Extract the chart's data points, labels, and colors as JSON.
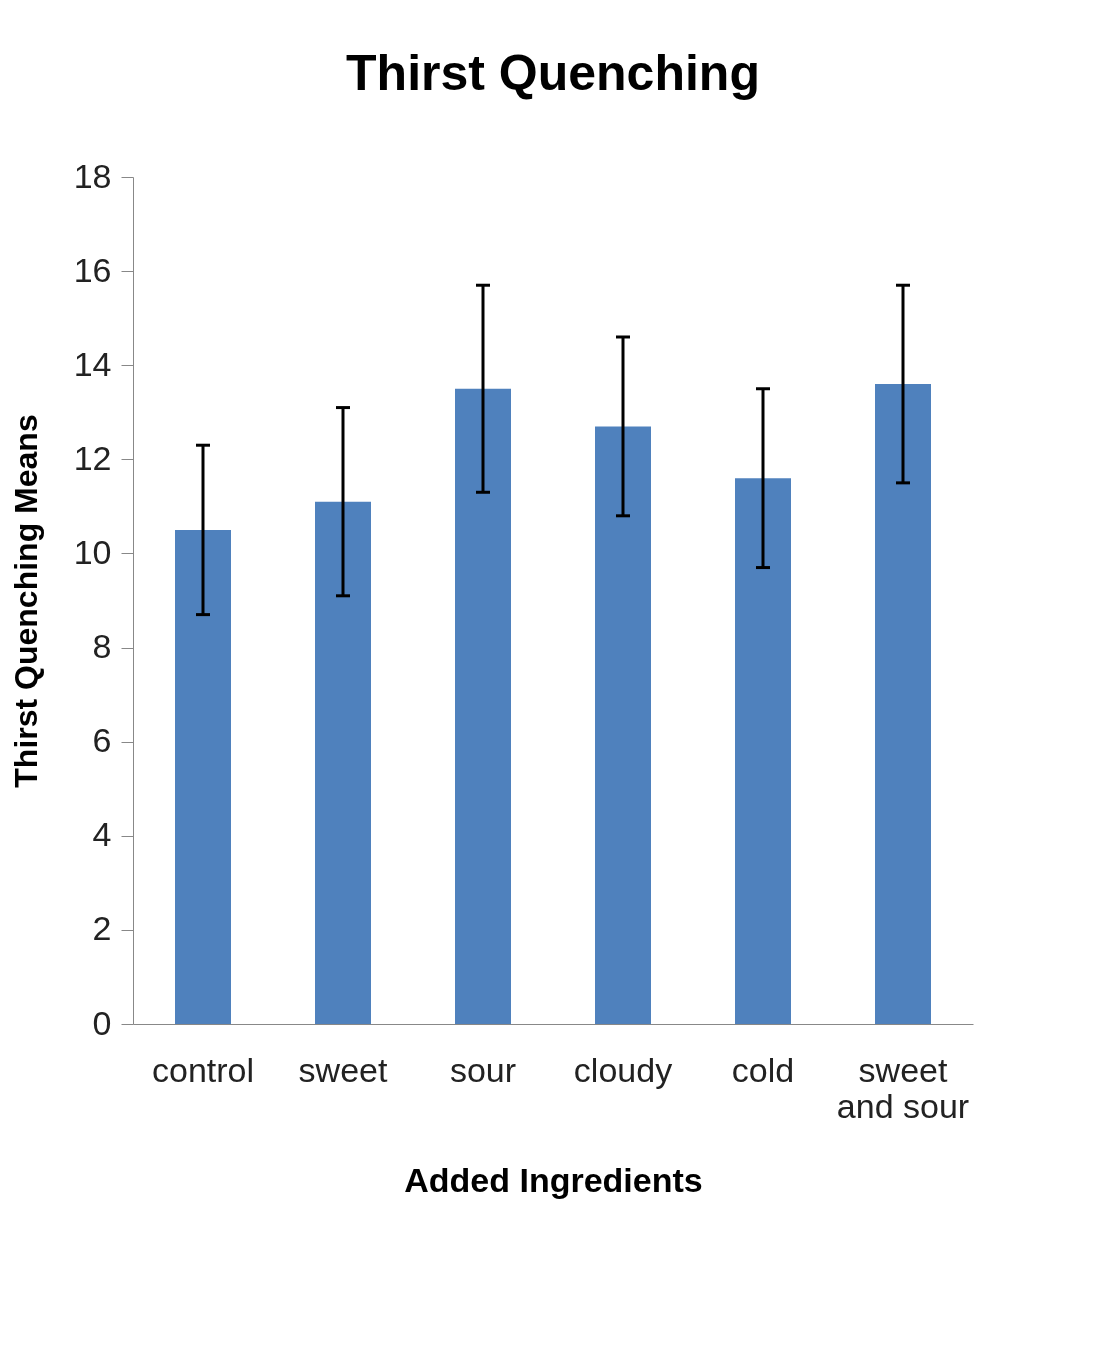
{
  "chart_data": {
    "type": "bar",
    "title": "Thirst Quenching",
    "xlabel": "Added Ingredients",
    "ylabel": "Thirst Quenching Means",
    "categories": [
      "control",
      "sweet",
      "sour",
      "cloudy",
      "cold",
      "sweet and sour"
    ],
    "values": [
      10.5,
      11.1,
      13.5,
      12.7,
      11.6,
      13.6
    ],
    "errors": [
      1.8,
      2.0,
      2.2,
      1.9,
      1.9,
      2.1
    ],
    "color": "#4f81bd",
    "ylim": [
      0,
      18
    ],
    "yticks": [
      0,
      2,
      4,
      6,
      8,
      10,
      12,
      14,
      16,
      18
    ],
    "grid": false
  }
}
